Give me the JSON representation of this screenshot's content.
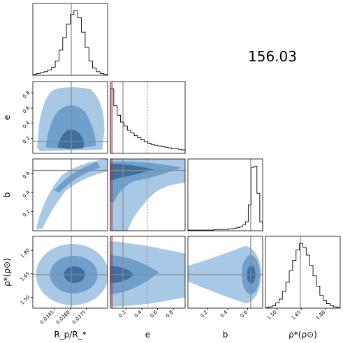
{
  "title": "156.03",
  "colors": {
    "contour_outer": "#a9c8e6",
    "contour_mid": "#6f9fcd",
    "contour_inner": "#3f6f9f",
    "truth_line": "#8a8a8a",
    "median_line": "#8a8a8a",
    "red_marker": "#d62728"
  },
  "chart_data": {
    "type": "corner",
    "parameters": [
      {
        "key": "rp",
        "label": "R_p/R_*",
        "range": [
          0.0325,
          0.0395
        ],
        "ticks": [
          "0.0345",
          "0.0360",
          "0.0375"
        ],
        "tick_values": [
          0.0345,
          0.036,
          0.0375
        ],
        "median": 0.0361
      },
      {
        "key": "e",
        "label": "e",
        "range": [
          0.0,
          0.95
        ],
        "ticks": [
          "0.2",
          "0.4",
          "0.6",
          "0.8"
        ],
        "tick_values": [
          0.2,
          0.4,
          0.6,
          0.8
        ],
        "median": 0.16,
        "mean": 0.47,
        "red_value": 0.02
      },
      {
        "key": "b",
        "label": "b",
        "range": [
          0.0,
          0.75
        ],
        "ticks": [
          "0.2",
          "0.4",
          "0.6"
        ],
        "tick_values": [
          0.2,
          0.4,
          0.6
        ],
        "median": 0.63
      },
      {
        "key": "rho",
        "label": "ρ*(ρ⊙)",
        "range": [
          1.43,
          1.89
        ],
        "ticks": [
          "1.50",
          "1.65",
          "1.80"
        ],
        "tick_values": [
          1.5,
          1.65,
          1.8
        ],
        "median": 1.645
      }
    ],
    "histograms": {
      "rp": [
        1,
        2,
        3,
        4,
        6,
        9,
        16,
        28,
        42,
        57,
        68,
        72,
        64,
        48,
        31,
        16,
        8,
        4,
        2,
        1
      ],
      "e": [
        95,
        70,
        56,
        46,
        40,
        34,
        30,
        26,
        23,
        20,
        17,
        15,
        13,
        12,
        11,
        10,
        9,
        8,
        7,
        7,
        6,
        5
      ],
      "b": [
        1,
        1,
        1,
        1,
        1,
        1,
        1,
        1,
        1,
        2,
        2,
        2,
        2,
        2,
        3,
        3,
        4,
        5,
        6,
        9,
        14,
        40,
        98,
        100,
        58,
        14
      ],
      "rho": [
        1,
        2,
        4,
        8,
        14,
        26,
        40,
        58,
        74,
        90,
        100,
        94,
        82,
        66,
        50,
        34,
        20,
        12,
        7,
        4,
        2,
        1
      ]
    }
  }
}
